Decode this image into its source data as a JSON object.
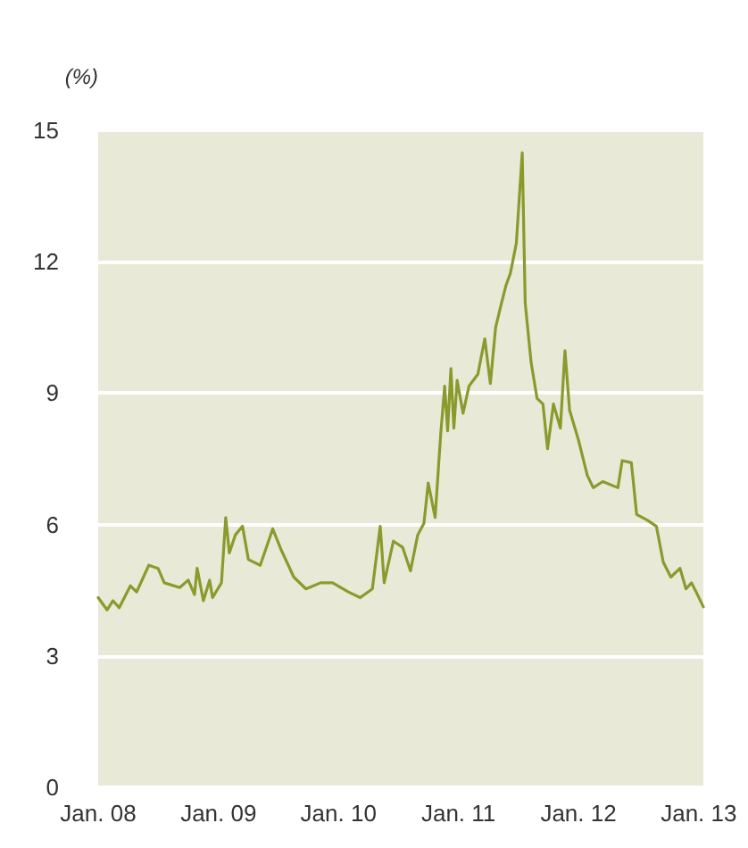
{
  "chart_data": {
    "type": "line",
    "ylabel": "(%)",
    "x": [
      "2008-01-01",
      "2008-01-28",
      "2008-02-15",
      "2008-03-05",
      "2008-04-08",
      "2008-04-27",
      "2008-06-03",
      "2008-07-01",
      "2008-07-20",
      "2008-09-05",
      "2008-10-01",
      "2008-10-20",
      "2008-10-28",
      "2008-11-16",
      "2008-12-05",
      "2008-12-14",
      "2009-01-10",
      "2009-01-23",
      "2009-02-03",
      "2009-02-21",
      "2009-03-15",
      "2009-04-02",
      "2009-05-08",
      "2009-06-15",
      "2009-07-12",
      "2009-08-18",
      "2009-09-24",
      "2009-11-08",
      "2009-12-14",
      "2010-01-31",
      "2010-03-08",
      "2010-04-14",
      "2010-05-08",
      "2010-05-20",
      "2010-06-17",
      "2010-07-15",
      "2010-08-08",
      "2010-08-30",
      "2010-09-18",
      "2010-10-01",
      "2010-10-22",
      "2010-11-08",
      "2010-11-20",
      "2010-11-29",
      "2010-12-09",
      "2010-12-18",
      "2010-12-28",
      "2011-01-15",
      "2011-02-02",
      "2011-03-01",
      "2011-03-22",
      "2011-04-08",
      "2011-04-24",
      "2011-05-12",
      "2011-05-26",
      "2011-06-08",
      "2011-06-26",
      "2011-07-14",
      "2011-07-23",
      "2011-08-10",
      "2011-08-28",
      "2011-09-15",
      "2011-09-29",
      "2011-10-17",
      "2011-11-07",
      "2011-11-21",
      "2011-12-05",
      "2012-01-01",
      "2012-01-28",
      "2012-02-15",
      "2012-03-15",
      "2012-04-30",
      "2012-05-13",
      "2012-06-10",
      "2012-06-26",
      "2012-07-28",
      "2012-08-25",
      "2012-09-15",
      "2012-10-08",
      "2012-11-05",
      "2012-11-23",
      "2012-12-10",
      "2012-12-28",
      "2013-01-15"
    ],
    "series": [
      {
        "color": "#8a9a2c",
        "values": [
          4.33,
          4.05,
          4.26,
          4.1,
          4.6,
          4.46,
          5.07,
          5.0,
          4.67,
          4.56,
          4.73,
          4.4,
          5.0,
          4.26,
          4.73,
          4.33,
          4.67,
          6.16,
          5.35,
          5.76,
          5.96,
          5.2,
          5.07,
          5.9,
          5.4,
          4.8,
          4.53,
          4.67,
          4.67,
          4.46,
          4.33,
          4.53,
          5.96,
          4.67,
          5.62,
          5.48,
          4.94,
          5.76,
          6.03,
          6.95,
          6.16,
          8.07,
          9.16,
          8.14,
          9.56,
          8.2,
          9.29,
          8.54,
          9.16,
          9.43,
          10.24,
          9.22,
          10.5,
          11.06,
          11.47,
          11.74,
          12.42,
          14.49,
          11.06,
          9.7,
          8.88,
          8.75,
          7.73,
          8.75,
          8.2,
          9.97,
          8.61,
          7.93,
          7.12,
          6.84,
          6.98,
          6.84,
          7.46,
          7.41,
          6.23,
          6.1,
          5.96,
          5.14,
          4.8,
          5.0,
          4.53,
          4.67,
          4.4,
          4.12
        ]
      }
    ],
    "xlim": [
      "2008-01-01",
      "2013-01-15"
    ],
    "xticks": [
      {
        "value": "2008-01-01",
        "label": "Jan. 08"
      },
      {
        "value": "2009-01-01",
        "label": "Jan. 09"
      },
      {
        "value": "2010-01-01",
        "label": "Jan. 10"
      },
      {
        "value": "2011-01-01",
        "label": "Jan. 11"
      },
      {
        "value": "2012-01-01",
        "label": "Jan. 12"
      },
      {
        "value": "2013-01-01",
        "label": "Jan. 13"
      }
    ],
    "ylim": [
      0,
      15
    ],
    "yticks": [
      0,
      3,
      6,
      9,
      12,
      15
    ],
    "grid": "y",
    "marker": "none",
    "line_style": "solid"
  }
}
